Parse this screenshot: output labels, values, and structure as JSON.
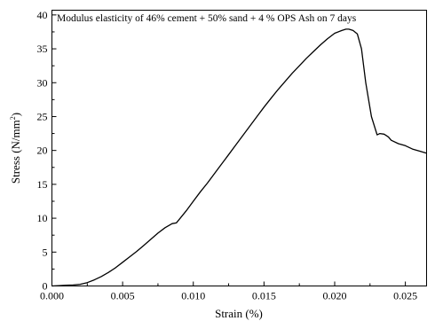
{
  "chart_data": {
    "type": "line",
    "annotation": "Modulus elasticity of 46% cement + 50% sand + 4 % OPS Ash on 7 days",
    "xlabel": "Strain (%)",
    "ylabel_main": "Stress (N/mm",
    "ylabel_sup": "2",
    "ylabel_close": ")",
    "xlim": [
      0.0,
      0.0265
    ],
    "ylim": [
      0,
      40.7
    ],
    "xticks": [
      0.0,
      0.005,
      0.01,
      0.015,
      0.02,
      0.025
    ],
    "xtick_labels": [
      "0.000",
      "0.005",
      "0.010",
      "0.015",
      "0.020",
      "0.025"
    ],
    "yticks": [
      0,
      5,
      10,
      15,
      20,
      25,
      30,
      35,
      40
    ],
    "ytick_labels": [
      "0",
      "5",
      "10",
      "15",
      "20",
      "25",
      "30",
      "35",
      "40"
    ],
    "grid": false,
    "series": [
      {
        "color": "#000000",
        "x": [
          0.0,
          0.0005,
          0.001,
          0.0015,
          0.002,
          0.0025,
          0.003,
          0.0035,
          0.004,
          0.0045,
          0.005,
          0.0055,
          0.006,
          0.0065,
          0.007,
          0.0075,
          0.008,
          0.0085,
          0.0088,
          0.009,
          0.0095,
          0.01,
          0.0105,
          0.011,
          0.0115,
          0.012,
          0.0125,
          0.013,
          0.0135,
          0.014,
          0.0145,
          0.015,
          0.0155,
          0.016,
          0.0165,
          0.017,
          0.0175,
          0.018,
          0.0185,
          0.019,
          0.0195,
          0.02,
          0.0205,
          0.0208,
          0.021,
          0.0213,
          0.0216,
          0.0219,
          0.0222,
          0.0226,
          0.023,
          0.0232,
          0.0235,
          0.0238,
          0.024,
          0.0245,
          0.025,
          0.0255,
          0.026,
          0.0265
        ],
        "y": [
          0.0,
          0.05,
          0.1,
          0.15,
          0.25,
          0.5,
          0.9,
          1.4,
          2.0,
          2.7,
          3.5,
          4.3,
          5.1,
          6.0,
          6.9,
          7.8,
          8.6,
          9.2,
          9.3,
          9.8,
          11.1,
          12.5,
          13.9,
          15.2,
          16.6,
          18.0,
          19.4,
          20.8,
          22.2,
          23.6,
          25.0,
          26.4,
          27.7,
          29.0,
          30.2,
          31.4,
          32.5,
          33.6,
          34.6,
          35.6,
          36.5,
          37.3,
          37.7,
          37.9,
          37.9,
          37.7,
          37.2,
          35.0,
          30.0,
          25.0,
          22.3,
          22.5,
          22.4,
          22.0,
          21.5,
          21.0,
          20.7,
          20.2,
          19.9,
          19.6
        ]
      }
    ]
  }
}
